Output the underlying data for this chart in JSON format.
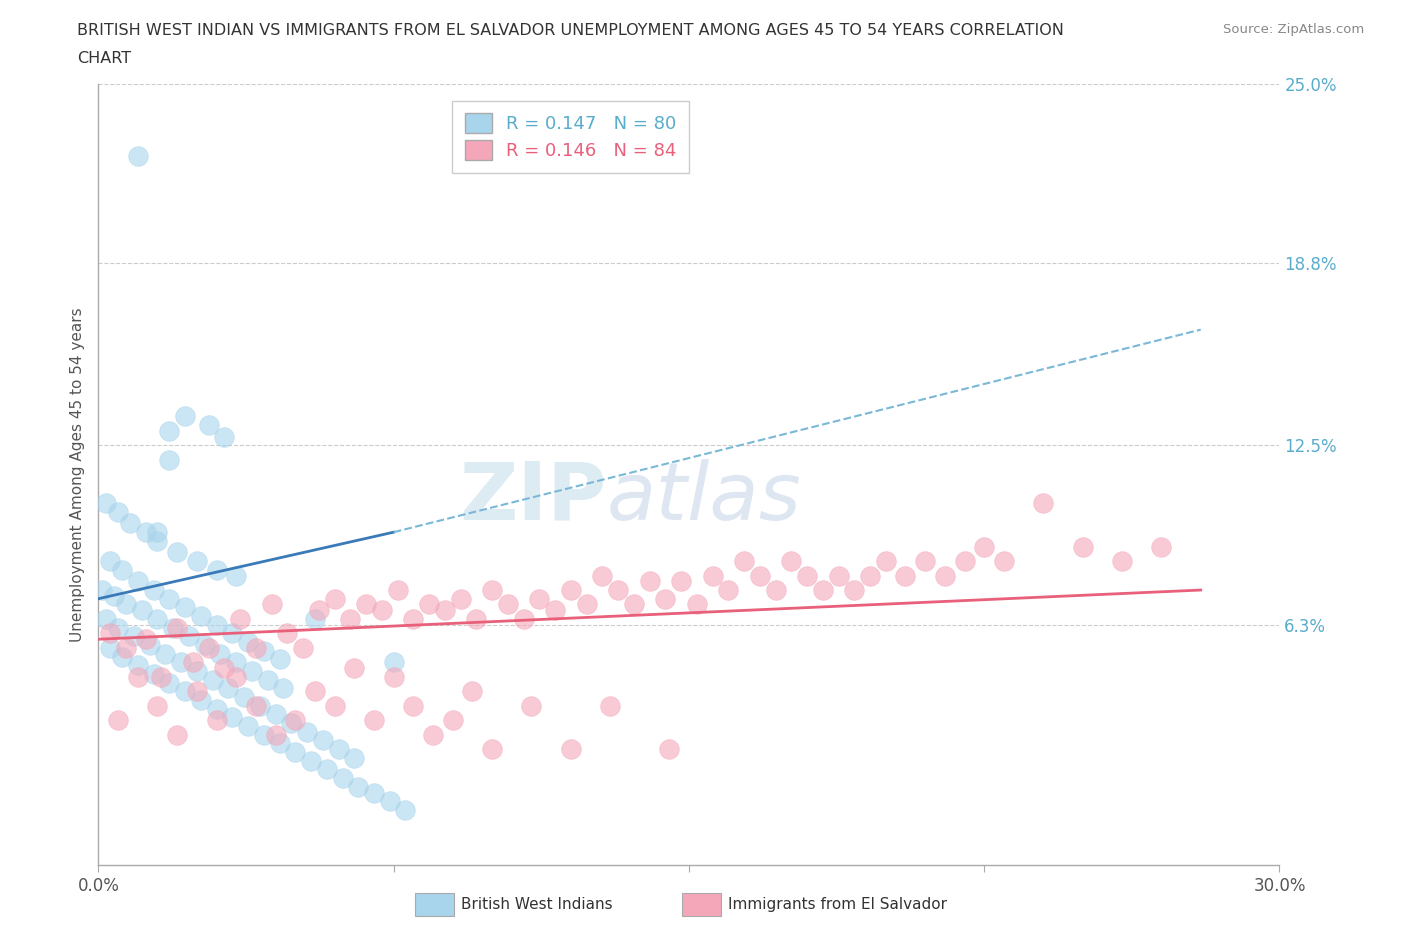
{
  "title_line1": "BRITISH WEST INDIAN VS IMMIGRANTS FROM EL SALVADOR UNEMPLOYMENT AMONG AGES 45 TO 54 YEARS CORRELATION",
  "title_line2": "CHART",
  "source": "Source: ZipAtlas.com",
  "ylabel": "Unemployment Among Ages 45 to 54 years",
  "xmin": 0.0,
  "xmax": 30.0,
  "ymin": -2.0,
  "ymax": 25.0,
  "yticks": [
    6.3,
    12.5,
    18.8,
    25.0
  ],
  "ytick_labels": [
    "6.3%",
    "12.5%",
    "18.8%",
    "25.0%"
  ],
  "blue_color": "#A8D4EC",
  "pink_color": "#F4A7B9",
  "blue_line_color": "#3a7ab8",
  "blue_dash_color": "#7ab8d8",
  "pink_line_color": "#E8607A",
  "legend_R1": "R = 0.147",
  "legend_N1": "N = 80",
  "legend_R2": "R = 0.146",
  "legend_N2": "N = 84",
  "watermark": "ZIPatlas",
  "blue_R": 0.147,
  "blue_N": 80,
  "pink_R": 0.146,
  "pink_N": 84,
  "blue_scatter_x": [
    1.0,
    2.2,
    1.8,
    2.8,
    3.2,
    0.2,
    0.5,
    0.8,
    1.2,
    1.5,
    2.0,
    2.5,
    3.0,
    0.3,
    0.6,
    1.0,
    1.4,
    1.8,
    2.2,
    2.6,
    3.0,
    3.4,
    3.8,
    4.2,
    4.6,
    0.1,
    0.4,
    0.7,
    1.1,
    1.5,
    1.9,
    2.3,
    2.7,
    3.1,
    3.5,
    3.9,
    4.3,
    4.7,
    0.2,
    0.5,
    0.9,
    1.3,
    1.7,
    2.1,
    2.5,
    2.9,
    3.3,
    3.7,
    4.1,
    4.5,
    4.9,
    5.3,
    5.7,
    6.1,
    6.5,
    0.3,
    0.6,
    1.0,
    1.4,
    1.8,
    2.2,
    2.6,
    3.0,
    3.4,
    3.8,
    4.2,
    4.6,
    5.0,
    5.4,
    5.8,
    6.2,
    6.6,
    7.0,
    7.4,
    7.8,
    1.5,
    3.5,
    5.5,
    7.5,
    1.8
  ],
  "blue_scatter_y": [
    22.5,
    13.5,
    13.0,
    13.2,
    12.8,
    10.5,
    10.2,
    9.8,
    9.5,
    9.2,
    8.8,
    8.5,
    8.2,
    8.5,
    8.2,
    7.8,
    7.5,
    7.2,
    6.9,
    6.6,
    6.3,
    6.0,
    5.7,
    5.4,
    5.1,
    7.5,
    7.3,
    7.0,
    6.8,
    6.5,
    6.2,
    5.9,
    5.6,
    5.3,
    5.0,
    4.7,
    4.4,
    4.1,
    6.5,
    6.2,
    5.9,
    5.6,
    5.3,
    5.0,
    4.7,
    4.4,
    4.1,
    3.8,
    3.5,
    3.2,
    2.9,
    2.6,
    2.3,
    2.0,
    1.7,
    5.5,
    5.2,
    4.9,
    4.6,
    4.3,
    4.0,
    3.7,
    3.4,
    3.1,
    2.8,
    2.5,
    2.2,
    1.9,
    1.6,
    1.3,
    1.0,
    0.7,
    0.5,
    0.2,
    -0.1,
    9.5,
    8.0,
    6.5,
    5.0,
    12.0
  ],
  "pink_scatter_x": [
    0.3,
    0.7,
    1.2,
    1.6,
    2.0,
    2.4,
    2.8,
    3.2,
    3.6,
    4.0,
    4.4,
    4.8,
    5.2,
    5.6,
    6.0,
    6.4,
    6.8,
    7.2,
    7.6,
    8.0,
    8.4,
    8.8,
    9.2,
    9.6,
    10.0,
    10.4,
    10.8,
    11.2,
    11.6,
    12.0,
    12.4,
    12.8,
    13.2,
    13.6,
    14.0,
    14.4,
    14.8,
    15.2,
    15.6,
    16.0,
    16.4,
    16.8,
    17.2,
    17.6,
    18.0,
    18.4,
    18.8,
    19.2,
    19.6,
    20.0,
    20.5,
    21.0,
    21.5,
    22.0,
    22.5,
    23.0,
    24.0,
    25.0,
    26.0,
    27.0,
    0.5,
    1.0,
    1.5,
    2.0,
    2.5,
    3.0,
    3.5,
    4.0,
    4.5,
    5.0,
    5.5,
    6.0,
    6.5,
    7.0,
    7.5,
    8.0,
    8.5,
    9.0,
    9.5,
    10.0,
    11.0,
    12.0,
    13.0,
    14.5
  ],
  "pink_scatter_y": [
    6.0,
    5.5,
    5.8,
    4.5,
    6.2,
    5.0,
    5.5,
    4.8,
    6.5,
    5.5,
    7.0,
    6.0,
    5.5,
    6.8,
    7.2,
    6.5,
    7.0,
    6.8,
    7.5,
    6.5,
    7.0,
    6.8,
    7.2,
    6.5,
    7.5,
    7.0,
    6.5,
    7.2,
    6.8,
    7.5,
    7.0,
    8.0,
    7.5,
    7.0,
    7.8,
    7.2,
    7.8,
    7.0,
    8.0,
    7.5,
    8.5,
    8.0,
    7.5,
    8.5,
    8.0,
    7.5,
    8.0,
    7.5,
    8.0,
    8.5,
    8.0,
    8.5,
    8.0,
    8.5,
    9.0,
    8.5,
    10.5,
    9.0,
    8.5,
    9.0,
    3.0,
    4.5,
    3.5,
    2.5,
    4.0,
    3.0,
    4.5,
    3.5,
    2.5,
    3.0,
    4.0,
    3.5,
    4.8,
    3.0,
    4.5,
    3.5,
    2.5,
    3.0,
    4.0,
    2.0,
    3.5,
    2.0,
    3.5,
    2.0
  ],
  "blue_line_x0": 0.0,
  "blue_line_y0": 7.2,
  "blue_line_x1": 7.5,
  "blue_line_y1": 9.5,
  "blue_dash_x0": 7.5,
  "blue_dash_y0": 9.5,
  "blue_dash_x1": 28.0,
  "blue_dash_y1": 16.5,
  "pink_line_x0": 0.0,
  "pink_line_y0": 5.8,
  "pink_line_x1": 28.0,
  "pink_line_y1": 7.5
}
